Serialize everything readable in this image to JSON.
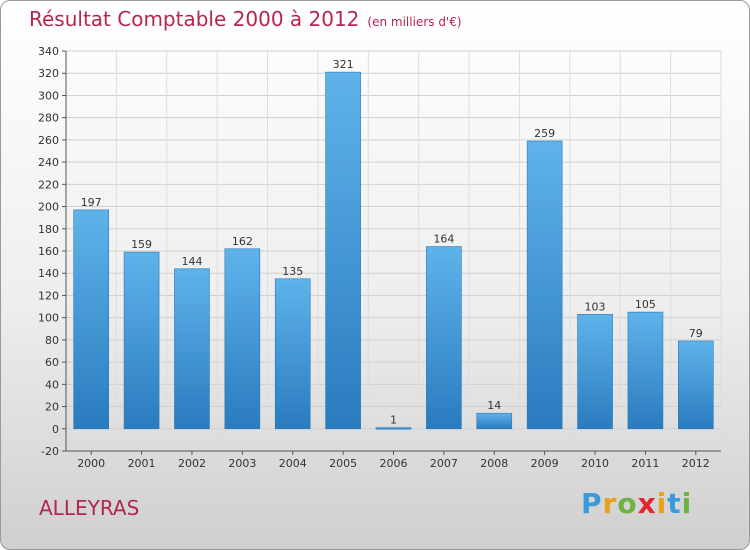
{
  "chart_data": {
    "type": "bar",
    "title": "Résultat Comptable 2000 à 2012",
    "subtitle": "(en milliers d'€)",
    "categories": [
      "2000",
      "2001",
      "2002",
      "2003",
      "2004",
      "2005",
      "2006",
      "2007",
      "2008",
      "2009",
      "2010",
      "2011",
      "2012"
    ],
    "values": [
      197,
      159,
      144,
      162,
      135,
      321,
      1,
      164,
      14,
      259,
      103,
      105,
      79
    ],
    "ylim": [
      -20,
      340
    ],
    "yticks": [
      -20,
      0,
      20,
      40,
      60,
      80,
      100,
      120,
      140,
      160,
      180,
      200,
      220,
      240,
      260,
      280,
      300,
      320,
      340
    ],
    "grid": true,
    "xlabel": "",
    "ylabel": ""
  },
  "commune": "ALLEYRAS",
  "logo": {
    "p": "P",
    "r": "r",
    "o": "o",
    "x": "x",
    "i1": "i",
    "t": "t",
    "i2": "i"
  },
  "colors": {
    "bar_light": "#5aaee6",
    "bar_dark": "#2a7bbf",
    "grid": "#cfcfcf",
    "title": "#b5264d"
  }
}
